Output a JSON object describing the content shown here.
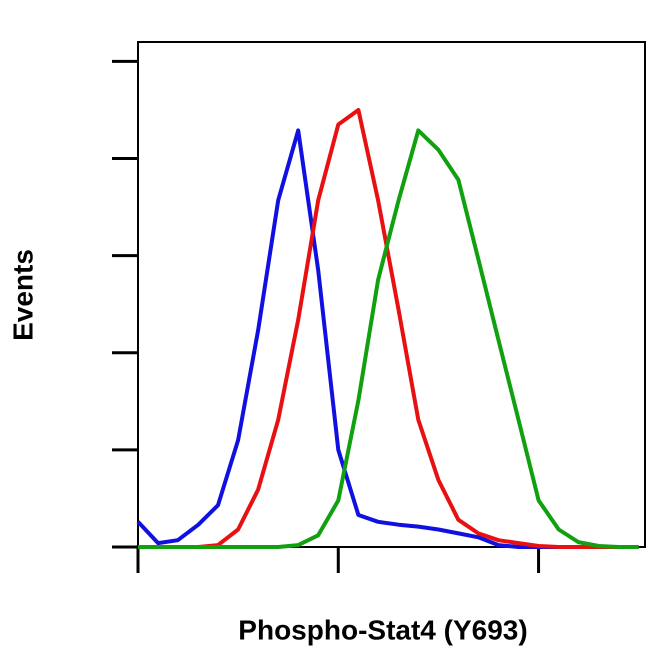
{
  "chart_data": {
    "type": "line",
    "x_label": "Phospho-Stat4 (Y693)",
    "y_label": "Events",
    "x_log": true,
    "x": [
      1,
      1.26,
      1.58,
      2.0,
      2.51,
      3.16,
      3.98,
      5.01,
      6.31,
      7.94,
      10,
      12.6,
      15.8,
      20.0,
      25.1,
      31.6,
      39.8,
      50.1,
      63.1,
      79.4,
      100,
      126,
      158,
      200,
      251,
      316
    ],
    "series": [
      {
        "name": "blue",
        "color": "#1010e0",
        "values": [
          26,
          4,
          7,
          23,
          43,
          110,
          223,
          357,
          429,
          285,
          100,
          33,
          26,
          23,
          21,
          18,
          14,
          10,
          2,
          0,
          0,
          0,
          0,
          0,
          0,
          0
        ]
      },
      {
        "name": "red",
        "color": "#e81010",
        "values": [
          0,
          0,
          0,
          0,
          2,
          18,
          59,
          131,
          234,
          357,
          435,
          450,
          357,
          244,
          131,
          69,
          28,
          14,
          7,
          4,
          1,
          0,
          0,
          0,
          0,
          0
        ]
      },
      {
        "name": "green",
        "color": "#10a010",
        "values": [
          0,
          0,
          0,
          0,
          0,
          0,
          0,
          0,
          2,
          12,
          48,
          151,
          275,
          357,
          429,
          409,
          378,
          296,
          213,
          131,
          48,
          18,
          5,
          1,
          0,
          0
        ]
      }
    ],
    "xlim": [
      1,
      340
    ],
    "xticks": [
      1,
      10,
      100
    ],
    "ylim": [
      0,
      520
    ],
    "yticks": [
      0,
      100,
      200,
      300,
      400,
      500
    ]
  }
}
